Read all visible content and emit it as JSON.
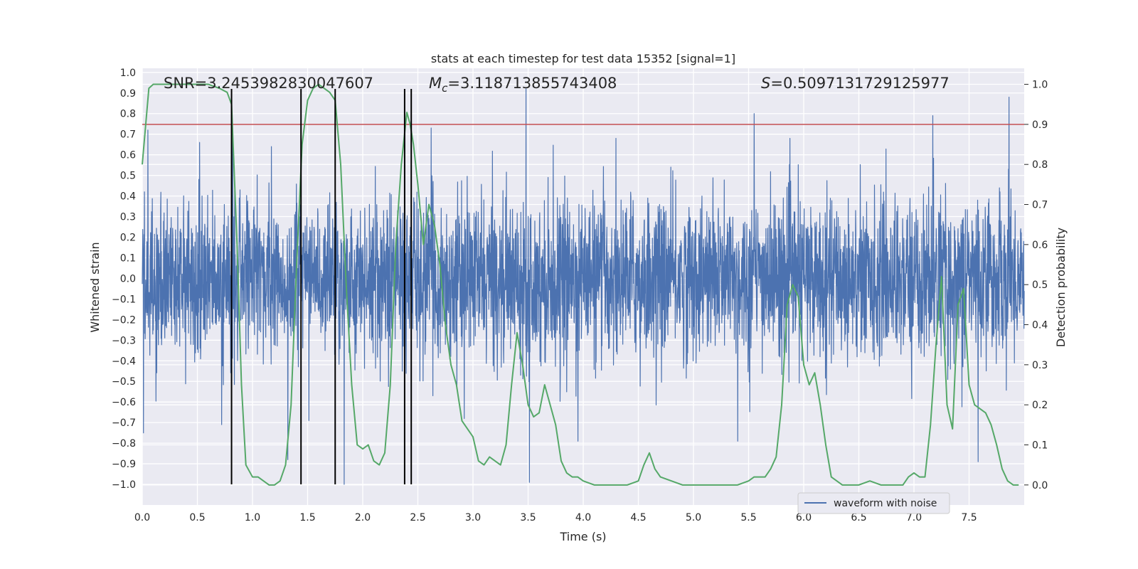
{
  "chart_data": {
    "type": "line",
    "title": "stats at each timestep for test data 15352 [signal=1]",
    "xlabel": "Time (s)",
    "ylabel": "Whitened strain",
    "y2label": "Detection probability",
    "xlim": [
      0.0,
      8.0
    ],
    "ylim": [
      -1.1,
      1.02
    ],
    "y2lim": [
      -0.05,
      1.04
    ],
    "xticks": [
      "0.0",
      "0.5",
      "1.0",
      "1.5",
      "2.0",
      "2.5",
      "3.0",
      "3.5",
      "4.0",
      "4.5",
      "5.0",
      "5.5",
      "6.0",
      "6.5",
      "7.0",
      "7.5"
    ],
    "yticks": [
      "1.0",
      "0.9",
      "0.8",
      "0.7",
      "0.6",
      "0.5",
      "0.4",
      "0.3",
      "0.2",
      "0.1",
      "0.0",
      "−0.1",
      "−0.2",
      "−0.3",
      "−0.4",
      "−0.5",
      "−0.6",
      "−0.7",
      "−0.8",
      "−0.9",
      "−1.0"
    ],
    "y2ticks": [
      "0.0",
      "0.1",
      "0.2",
      "0.3",
      "0.4",
      "0.5",
      "0.6",
      "0.7",
      "0.8",
      "0.9",
      "1.0"
    ],
    "grid": true,
    "legend": {
      "placement": "lower-right",
      "entries": [
        "waveform with noise"
      ]
    },
    "annotations": {
      "snr": "SNR=3.2453982830047607",
      "mc_symbol": "M",
      "mc_sub": "c",
      "mc_value": "=3.118713855743408",
      "s_symbol": "S",
      "s_value": "=0.5097131729125977"
    },
    "threshold": 0.9,
    "vlines": [
      0.81,
      1.44,
      1.75,
      2.38,
      2.44
    ],
    "vline_range": [
      -1.0,
      0.92
    ],
    "waveform": {
      "name": "waveform with noise",
      "color": "#4c72b0",
      "x_range": [
        0.0,
        8.0
      ],
      "peaks": [
        {
          "x": 0.01,
          "y": -0.75
        },
        {
          "x": 0.05,
          "y": 0.72
        },
        {
          "x": 0.52,
          "y": 0.66
        },
        {
          "x": 0.72,
          "y": -0.71
        },
        {
          "x": 0.82,
          "y": 0.72
        },
        {
          "x": 1.17,
          "y": 0.64
        },
        {
          "x": 1.32,
          "y": -0.88
        },
        {
          "x": 1.51,
          "y": -0.69
        },
        {
          "x": 1.83,
          "y": -1.0
        },
        {
          "x": 2.38,
          "y": 0.74
        },
        {
          "x": 2.62,
          "y": 0.73
        },
        {
          "x": 3.48,
          "y": 0.92
        },
        {
          "x": 3.51,
          "y": -0.99
        },
        {
          "x": 3.95,
          "y": -0.79
        },
        {
          "x": 5.55,
          "y": 0.8
        },
        {
          "x": 5.4,
          "y": -0.79
        },
        {
          "x": 7.17,
          "y": 0.79
        },
        {
          "x": 7.58,
          "y": -0.89
        },
        {
          "x": 7.86,
          "y": 0.88
        }
      ]
    },
    "probability": {
      "color": "#55a868",
      "x": [
        0.0,
        0.06,
        0.1,
        0.15,
        0.2,
        0.3,
        0.4,
        0.5,
        0.6,
        0.7,
        0.77,
        0.81,
        0.86,
        0.9,
        0.94,
        1.0,
        1.05,
        1.1,
        1.15,
        1.2,
        1.25,
        1.3,
        1.35,
        1.4,
        1.45,
        1.5,
        1.55,
        1.6,
        1.65,
        1.7,
        1.75,
        1.8,
        1.85,
        1.9,
        1.95,
        2.0,
        2.05,
        2.1,
        2.15,
        2.2,
        2.25,
        2.3,
        2.35,
        2.4,
        2.43,
        2.46,
        2.5,
        2.55,
        2.6,
        2.65,
        2.7,
        2.75,
        2.8,
        2.85,
        2.9,
        2.95,
        3.0,
        3.05,
        3.1,
        3.15,
        3.2,
        3.25,
        3.3,
        3.35,
        3.4,
        3.45,
        3.5,
        3.55,
        3.6,
        3.65,
        3.7,
        3.75,
        3.8,
        3.85,
        3.9,
        3.95,
        4.0,
        4.1,
        4.2,
        4.3,
        4.4,
        4.5,
        4.55,
        4.6,
        4.65,
        4.7,
        4.8,
        4.9,
        5.0,
        5.1,
        5.2,
        5.3,
        5.4,
        5.5,
        5.55,
        5.6,
        5.65,
        5.7,
        5.75,
        5.8,
        5.85,
        5.9,
        5.95,
        6.0,
        6.05,
        6.1,
        6.15,
        6.2,
        6.25,
        6.3,
        6.35,
        6.4,
        6.5,
        6.6,
        6.7,
        6.8,
        6.9,
        6.95,
        7.0,
        7.05,
        7.1,
        7.15,
        7.2,
        7.25,
        7.3,
        7.35,
        7.4,
        7.45,
        7.5,
        7.55,
        7.6,
        7.65,
        7.7,
        7.75,
        7.8,
        7.85,
        7.9,
        7.95
      ],
      "y": [
        0.8,
        0.99,
        1.0,
        1.0,
        1.0,
        1.0,
        1.0,
        1.0,
        1.0,
        0.99,
        0.98,
        0.95,
        0.6,
        0.25,
        0.05,
        0.02,
        0.02,
        0.01,
        0.0,
        0.0,
        0.01,
        0.05,
        0.2,
        0.55,
        0.85,
        0.96,
        0.99,
        1.0,
        0.99,
        0.98,
        0.96,
        0.8,
        0.5,
        0.25,
        0.1,
        0.09,
        0.1,
        0.06,
        0.05,
        0.08,
        0.25,
        0.6,
        0.8,
        0.93,
        0.9,
        0.85,
        0.75,
        0.6,
        0.7,
        0.65,
        0.55,
        0.4,
        0.3,
        0.25,
        0.16,
        0.14,
        0.12,
        0.06,
        0.05,
        0.07,
        0.06,
        0.05,
        0.1,
        0.25,
        0.38,
        0.3,
        0.2,
        0.17,
        0.18,
        0.25,
        0.2,
        0.15,
        0.06,
        0.03,
        0.02,
        0.02,
        0.01,
        0.0,
        0.0,
        0.0,
        0.0,
        0.01,
        0.05,
        0.08,
        0.04,
        0.02,
        0.01,
        0.0,
        0.0,
        0.0,
        0.0,
        0.0,
        0.0,
        0.01,
        0.02,
        0.02,
        0.02,
        0.04,
        0.07,
        0.2,
        0.45,
        0.5,
        0.47,
        0.3,
        0.25,
        0.28,
        0.2,
        0.1,
        0.02,
        0.01,
        0.0,
        0.0,
        0.0,
        0.01,
        0.0,
        0.0,
        0.0,
        0.02,
        0.03,
        0.02,
        0.02,
        0.15,
        0.35,
        0.52,
        0.2,
        0.14,
        0.45,
        0.49,
        0.25,
        0.2,
        0.19,
        0.18,
        0.15,
        0.1,
        0.04,
        0.01,
        0.0,
        0.0
      ]
    }
  }
}
